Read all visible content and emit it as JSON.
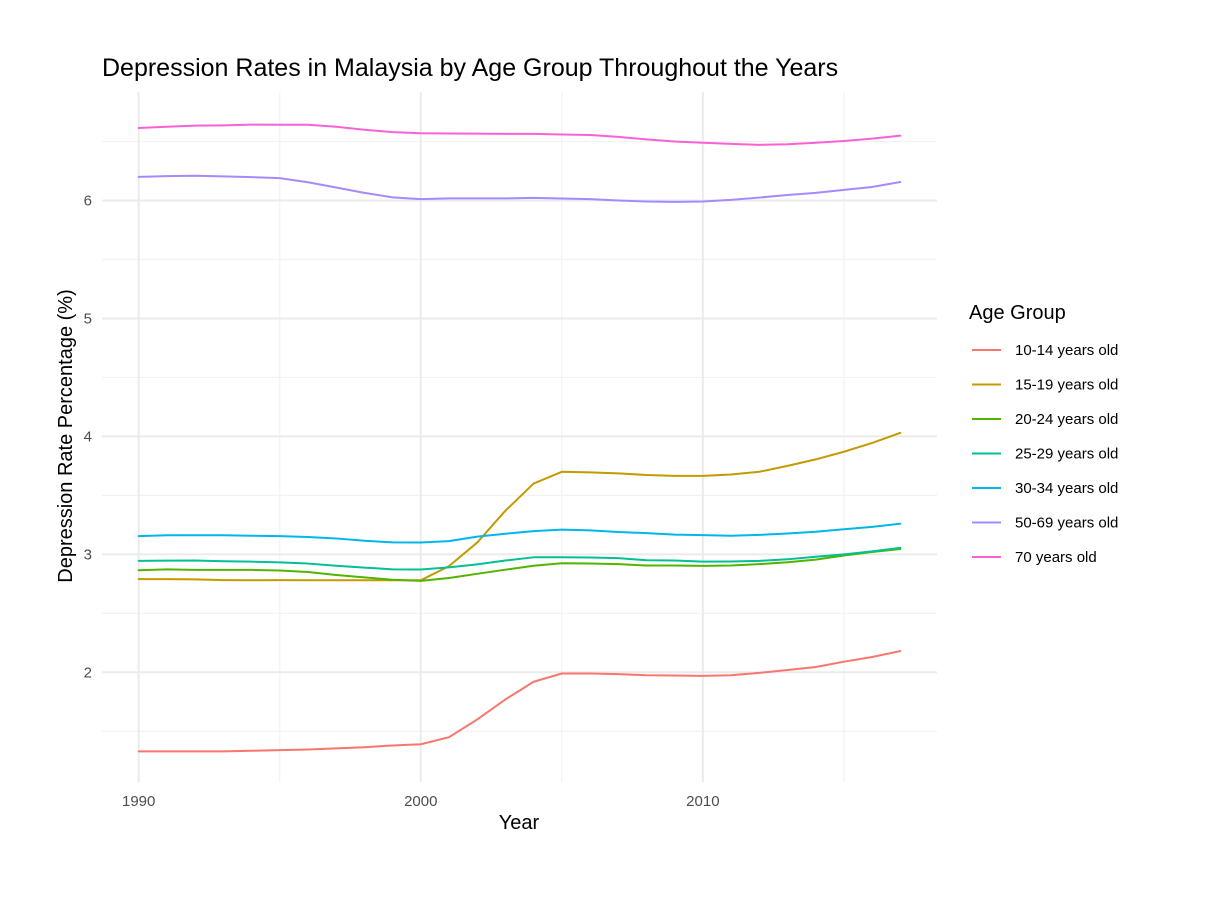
{
  "chart_data": {
    "type": "line",
    "title": "Depression Rates in Malaysia by Age Group Throughout the Years",
    "xlabel": "Year",
    "ylabel": "Depression Rate Percentage (%)",
    "xlim": [
      1988.7,
      2018.3
    ],
    "ylim": [
      1.07,
      6.92
    ],
    "x_ticks": [
      1990,
      2000,
      2010
    ],
    "x_minor_ticks": [
      1995,
      2005,
      2015
    ],
    "y_ticks": [
      2,
      3,
      4,
      5,
      6
    ],
    "y_minor_ticks": [
      1.5,
      2.5,
      3.5,
      4.5,
      5.5,
      6.5
    ],
    "grid": true,
    "legend": {
      "title": "Age Group",
      "position": "right"
    },
    "x": [
      1990,
      1991,
      1992,
      1993,
      1994,
      1995,
      1996,
      1997,
      1998,
      1999,
      2000,
      2001,
      2002,
      2003,
      2004,
      2005,
      2006,
      2007,
      2008,
      2009,
      2010,
      2011,
      2012,
      2013,
      2014,
      2015,
      2016,
      2017
    ],
    "series": [
      {
        "name": "10-14 years old",
        "color": "#F8766D",
        "values": [
          1.33,
          1.33,
          1.33,
          1.33,
          1.335,
          1.34,
          1.345,
          1.355,
          1.365,
          1.38,
          1.39,
          1.45,
          1.6,
          1.77,
          1.92,
          1.99,
          1.99,
          1.985,
          1.975,
          1.973,
          1.97,
          1.975,
          1.995,
          2.02,
          2.045,
          2.09,
          2.13,
          2.18
        ]
      },
      {
        "name": "15-19 years old",
        "color": "#C49A00",
        "values": [
          2.79,
          2.79,
          2.788,
          2.782,
          2.78,
          2.782,
          2.78,
          2.78,
          2.78,
          2.78,
          2.78,
          2.9,
          3.1,
          3.37,
          3.6,
          3.7,
          3.695,
          3.687,
          3.673,
          3.665,
          3.665,
          3.677,
          3.7,
          3.75,
          3.805,
          3.87,
          3.945,
          4.03
        ]
      },
      {
        "name": "20-24 years old",
        "color": "#53B400",
        "values": [
          2.865,
          2.873,
          2.868,
          2.868,
          2.868,
          2.863,
          2.85,
          2.825,
          2.805,
          2.785,
          2.775,
          2.8,
          2.835,
          2.87,
          2.903,
          2.925,
          2.923,
          2.917,
          2.905,
          2.905,
          2.902,
          2.905,
          2.917,
          2.933,
          2.955,
          2.99,
          3.02,
          3.045
        ]
      },
      {
        "name": "25-29 years old",
        "color": "#00C094",
        "values": [
          2.945,
          2.947,
          2.948,
          2.942,
          2.938,
          2.932,
          2.922,
          2.903,
          2.888,
          2.873,
          2.872,
          2.89,
          2.915,
          2.948,
          2.975,
          2.975,
          2.973,
          2.968,
          2.95,
          2.948,
          2.938,
          2.94,
          2.945,
          2.958,
          2.98,
          3.0,
          3.025,
          3.055
        ]
      },
      {
        "name": "30-34 years old",
        "color": "#00B6EB",
        "values": [
          3.155,
          3.162,
          3.162,
          3.162,
          3.158,
          3.155,
          3.147,
          3.135,
          3.115,
          3.102,
          3.1,
          3.112,
          3.15,
          3.175,
          3.197,
          3.21,
          3.203,
          3.19,
          3.18,
          3.167,
          3.163,
          3.158,
          3.165,
          3.177,
          3.192,
          3.213,
          3.233,
          3.26
        ]
      },
      {
        "name": "50-69 years old",
        "color": "#A58AFF",
        "values": [
          6.2,
          6.207,
          6.21,
          6.205,
          6.198,
          6.19,
          6.155,
          6.11,
          6.065,
          6.027,
          6.012,
          6.018,
          6.018,
          6.018,
          6.022,
          6.017,
          6.012,
          6.0,
          5.992,
          5.988,
          5.992,
          6.005,
          6.025,
          6.047,
          6.065,
          6.09,
          6.115,
          6.157
        ]
      },
      {
        "name": "70 years old",
        "color": "#FB61D7",
        "values": [
          6.615,
          6.625,
          6.635,
          6.637,
          6.643,
          6.642,
          6.642,
          6.625,
          6.6,
          6.58,
          6.57,
          6.568,
          6.567,
          6.565,
          6.565,
          6.56,
          6.555,
          6.54,
          6.518,
          6.5,
          6.49,
          6.48,
          6.472,
          6.477,
          6.49,
          6.505,
          6.525,
          6.55
        ]
      }
    ]
  }
}
